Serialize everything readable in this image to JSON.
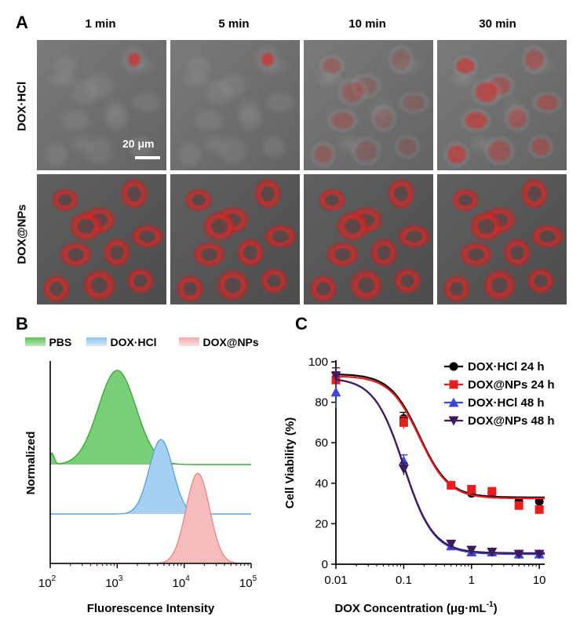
{
  "panel_a": {
    "letter": "A",
    "columns": [
      "1 min",
      "5 min",
      "10 min",
      "30 min"
    ],
    "rows": [
      "DOX·HCl",
      "DOX@NPs"
    ],
    "scale_bar": "20 μm",
    "red_intensity": {
      "DOX·HCl": [
        0.08,
        0.1,
        0.2,
        0.45
      ],
      "DOX@NPs": [
        0.85,
        0.85,
        0.85,
        0.85
      ]
    }
  },
  "panel_b": {
    "letter": "B",
    "legend": [
      "PBS",
      "DOX·HCl",
      "DOX@NPs"
    ],
    "colors": {
      "PBS": "#5cc35a",
      "DOX·HCl": "#8fc3ee",
      "DOX@NPs": "#f2a9a9"
    },
    "ylabel": "Normalized",
    "xlabel": "Fluorescence Intensity",
    "xticks": [
      "10",
      "10",
      "10",
      "10"
    ],
    "xtick_exponents": [
      "2",
      "3",
      "4",
      "5"
    ]
  },
  "panel_c": {
    "letter": "C",
    "ylabel": "Cell Viability (%)",
    "xlabel_main": "DOX Concentration (μg·mL",
    "xlabel_sup": "-1",
    "xlabel_end": ")",
    "xticks": [
      "0.01",
      "0.1",
      "1",
      "10"
    ],
    "yticks": [
      "0",
      "20",
      "40",
      "60",
      "80",
      "100"
    ]
  },
  "chart_data": [
    {
      "type": "area",
      "scale": "log-x",
      "xlim": [
        100,
        100000
      ],
      "series": [
        {
          "name": "PBS",
          "peak_x": 1000,
          "color": "#5cc35a"
        },
        {
          "name": "DOX·HCl",
          "peak_x": 4500,
          "color": "#8fc3ee"
        },
        {
          "name": "DOX@NPs",
          "peak_x": 16000,
          "color": "#f2a9a9"
        }
      ],
      "xlabel": "Fluorescence Intensity",
      "ylabel": "Normalized",
      "legend": "top"
    },
    {
      "type": "scatter",
      "scale": "log-x",
      "xlim": [
        0.01,
        12
      ],
      "ylim": [
        0,
        100
      ],
      "xlabel": "DOX Concentration (μg·mL-1)",
      "ylabel": "Cell Viability (%)",
      "legend": "top-right",
      "x": [
        0.01,
        0.1,
        0.5,
        1,
        2,
        5,
        10
      ],
      "series": [
        {
          "name": "DOX·HCl 24 h",
          "marker": "circle",
          "color": "#000000",
          "values": [
            91,
            72,
            39,
            35,
            35,
            31,
            31
          ],
          "fit": {
            "top": 94,
            "bottom": 33,
            "ec50": 0.17,
            "hill": 2.0
          }
        },
        {
          "name": "DOX@NPs 24 h",
          "marker": "square",
          "color": "#e81d1d",
          "values": [
            91,
            70,
            39,
            37,
            36,
            29,
            27
          ],
          "fit": {
            "top": 93,
            "bottom": 32.5,
            "ec50": 0.17,
            "hill": 2.0
          }
        },
        {
          "name": "DOX·HCl 48 h",
          "marker": "triangle-up",
          "color": "#3c45d8",
          "values": [
            85,
            51,
            9,
            6,
            6,
            5,
            5
          ],
          "fit": {
            "top": 92,
            "bottom": 5,
            "ec50": 0.1,
            "hill": 2.0
          }
        },
        {
          "name": "DOX@NPs 48 h",
          "marker": "triangle-down",
          "color": "#3e1a5c",
          "values": [
            93,
            47,
            10,
            7,
            6,
            5,
            5
          ],
          "fit": {
            "top": 92,
            "bottom": 5.5,
            "ec50": 0.1,
            "hill": 2.0
          }
        }
      ]
    }
  ]
}
